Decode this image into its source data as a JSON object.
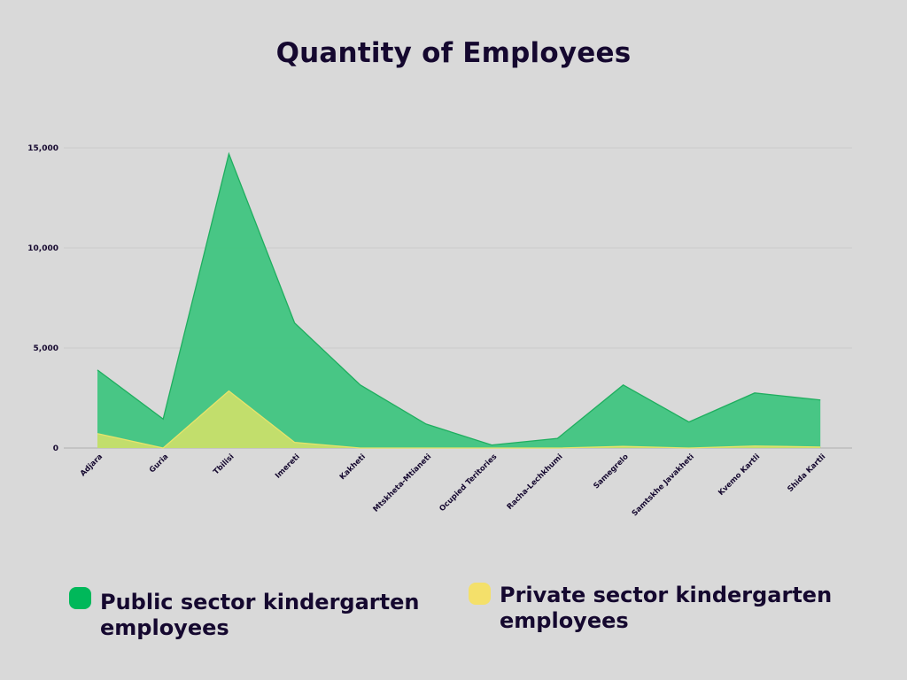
{
  "chart_data": {
    "type": "area",
    "title": "Quantity of Employees",
    "xlabel": "",
    "ylabel": "",
    "categories": [
      "Adjara",
      "Guria",
      "Tbilisi",
      "Imereti",
      "Kakheti",
      "Mtskheta-Mtianeti",
      "Ocupied Teritories",
      "Racha-Lechkhumi",
      "Samegrelo",
      "Samtskhe Javakheti",
      "Kvemo Kartli",
      "Shida Kartli"
    ],
    "series": [
      {
        "name": "Public sector kindergarten employees",
        "color": "#00b85a",
        "values": [
          3900,
          1450,
          14700,
          6250,
          3150,
          1200,
          150,
          480,
          3150,
          1300,
          2750,
          2400
        ]
      },
      {
        "name": "Private sector kindergarten employees",
        "color": "#f4e06a",
        "values": [
          720,
          0,
          2850,
          280,
          0,
          0,
          0,
          0,
          80,
          0,
          100,
          50
        ]
      }
    ],
    "yticks": [
      "0",
      "5,000",
      "10,000",
      "15,000"
    ],
    "ylim": [
      0,
      15000
    ],
    "grid": true,
    "legend_position": "bottom"
  }
}
